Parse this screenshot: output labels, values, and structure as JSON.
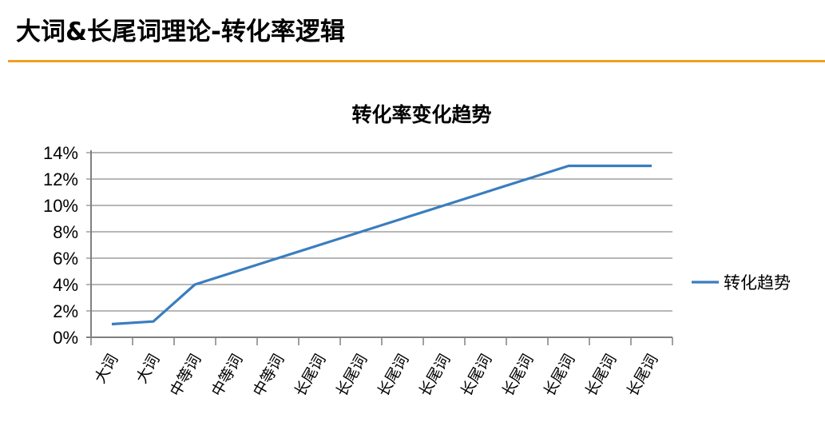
{
  "slide": {
    "title": "大词&长尾词理论-转化率逻辑",
    "accent_color": "#f0a020"
  },
  "chart_data": {
    "type": "line",
    "title": "转化率变化趋势",
    "categories": [
      "大词",
      "大词",
      "中等词",
      "中等词",
      "中等词",
      "长尾词",
      "长尾词",
      "长尾词",
      "长尾词",
      "长尾词",
      "长尾词",
      "长尾词",
      "长尾词",
      "长尾词"
    ],
    "series": [
      {
        "name": "转化趋势",
        "color": "#3a7dbf",
        "values": [
          1,
          1.2,
          4,
          5,
          6,
          7,
          8,
          9,
          10,
          11,
          12,
          13,
          13,
          13
        ]
      }
    ],
    "ylim": [
      0,
      14
    ],
    "yticks": [
      0,
      2,
      4,
      6,
      8,
      10,
      12,
      14
    ],
    "ytick_labels": [
      "0%",
      "2%",
      "4%",
      "6%",
      "8%",
      "10%",
      "12%",
      "14%"
    ],
    "y_unit": "%",
    "grid": true,
    "legend_position": "right"
  }
}
